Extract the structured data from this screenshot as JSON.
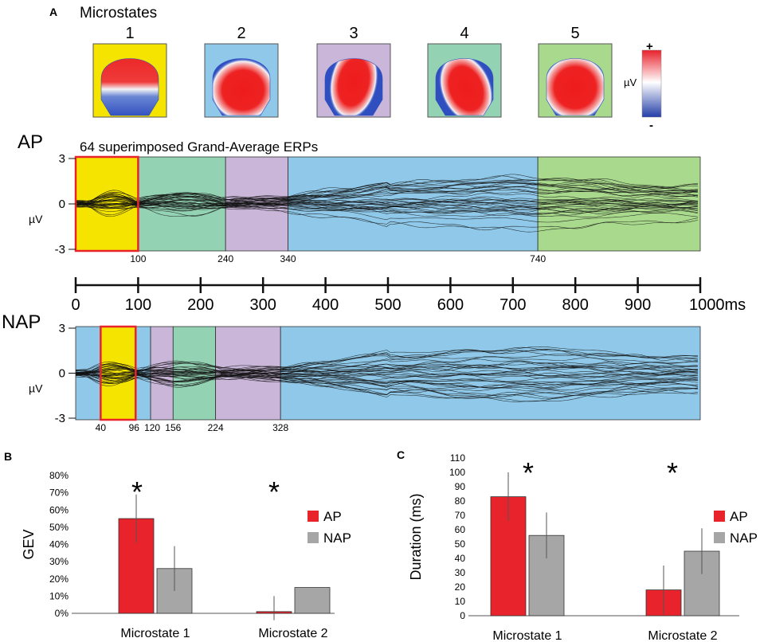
{
  "panels": {
    "a": "A",
    "b": "B",
    "c": "C"
  },
  "microstates": {
    "title": "Microstates",
    "maps": [
      {
        "label": "1",
        "bg": "#f5e400"
      },
      {
        "label": "2",
        "bg": "#8fc8e8"
      },
      {
        "label": "3",
        "bg": "#c9b6d9"
      },
      {
        "label": "4",
        "bg": "#93d3b3"
      },
      {
        "label": "5",
        "bg": "#a9d98c"
      }
    ],
    "colorbar": {
      "plus": "+",
      "minus": "-",
      "unit": "µV"
    }
  },
  "colors": {
    "yellow": "#f5e400",
    "green": "#93d3b3",
    "lilac": "#c9b6d9",
    "blue": "#8fc8e8",
    "lightgreen": "#a9d98c",
    "red_box": "#e8232b",
    "ap_bar": "#e8232b",
    "nap_bar": "#a6a6a6"
  },
  "ap": {
    "label": "AP",
    "subtitle": "64 superimposed Grand-Average ERPs",
    "y_ticks": [
      "3",
      "0",
      "-3"
    ],
    "y_unit": "µV",
    "segments": [
      {
        "start": 0,
        "end": 100,
        "color": "yellow"
      },
      {
        "start": 100,
        "end": 240,
        "color": "green"
      },
      {
        "start": 240,
        "end": 340,
        "color": "lilac"
      },
      {
        "start": 340,
        "end": 740,
        "color": "blue"
      },
      {
        "start": 740,
        "end": 1000,
        "color": "lightgreen"
      }
    ],
    "boundaries": [
      "100",
      "240",
      "340",
      "740"
    ],
    "highlight": [
      0,
      100
    ]
  },
  "time_axis": {
    "ticks": [
      "0",
      "100",
      "200",
      "300",
      "400",
      "500",
      "600",
      "700",
      "800",
      "900",
      "1000ms"
    ]
  },
  "nap": {
    "label": "NAP",
    "y_ticks": [
      "3",
      "0",
      "-3"
    ],
    "y_unit": "µV",
    "segments": [
      {
        "start": 0,
        "end": 40,
        "color": "blue"
      },
      {
        "start": 40,
        "end": 96,
        "color": "yellow"
      },
      {
        "start": 96,
        "end": 120,
        "color": "blue"
      },
      {
        "start": 120,
        "end": 156,
        "color": "lilac"
      },
      {
        "start": 156,
        "end": 224,
        "color": "green"
      },
      {
        "start": 224,
        "end": 328,
        "color": "lilac"
      },
      {
        "start": 328,
        "end": 1000,
        "color": "blue"
      }
    ],
    "boundaries": [
      "40",
      "96",
      "120",
      "156",
      "224",
      "328"
    ],
    "highlight": [
      40,
      96
    ]
  },
  "chart_data": [
    {
      "type": "bar",
      "title": "B",
      "ylabel": "GEV",
      "xlabel": "",
      "ylim": [
        0,
        80
      ],
      "y_ticks": [
        "0%",
        "10%",
        "20%",
        "30%",
        "40%",
        "50%",
        "60%",
        "70%",
        "80%"
      ],
      "categories": [
        "Microstate 1",
        "Microstate 2"
      ],
      "series": [
        {
          "name": "AP",
          "values": [
            55,
            1
          ],
          "errors": [
            14,
            9
          ]
        },
        {
          "name": "NAP",
          "values": [
            26,
            15
          ],
          "errors": [
            13,
            0
          ]
        }
      ],
      "annotations": [
        "*",
        "*"
      ],
      "legend": [
        "AP",
        "NAP"
      ]
    },
    {
      "type": "bar",
      "title": "C",
      "ylabel": "Duration (ms)",
      "xlabel": "",
      "ylim": [
        0,
        110
      ],
      "y_ticks": [
        "0",
        "10",
        "20",
        "30",
        "40",
        "50",
        "60",
        "70",
        "80",
        "90",
        "100",
        "110"
      ],
      "categories": [
        "Microstate 1",
        "Microstate 2"
      ],
      "series": [
        {
          "name": "AP",
          "values": [
            83,
            18
          ],
          "errors": [
            17,
            17
          ]
        },
        {
          "name": "NAP",
          "values": [
            56,
            45
          ],
          "errors": [
            16,
            16
          ]
        }
      ],
      "annotations": [
        "*",
        "*"
      ],
      "legend": [
        "AP",
        "NAP"
      ]
    }
  ]
}
